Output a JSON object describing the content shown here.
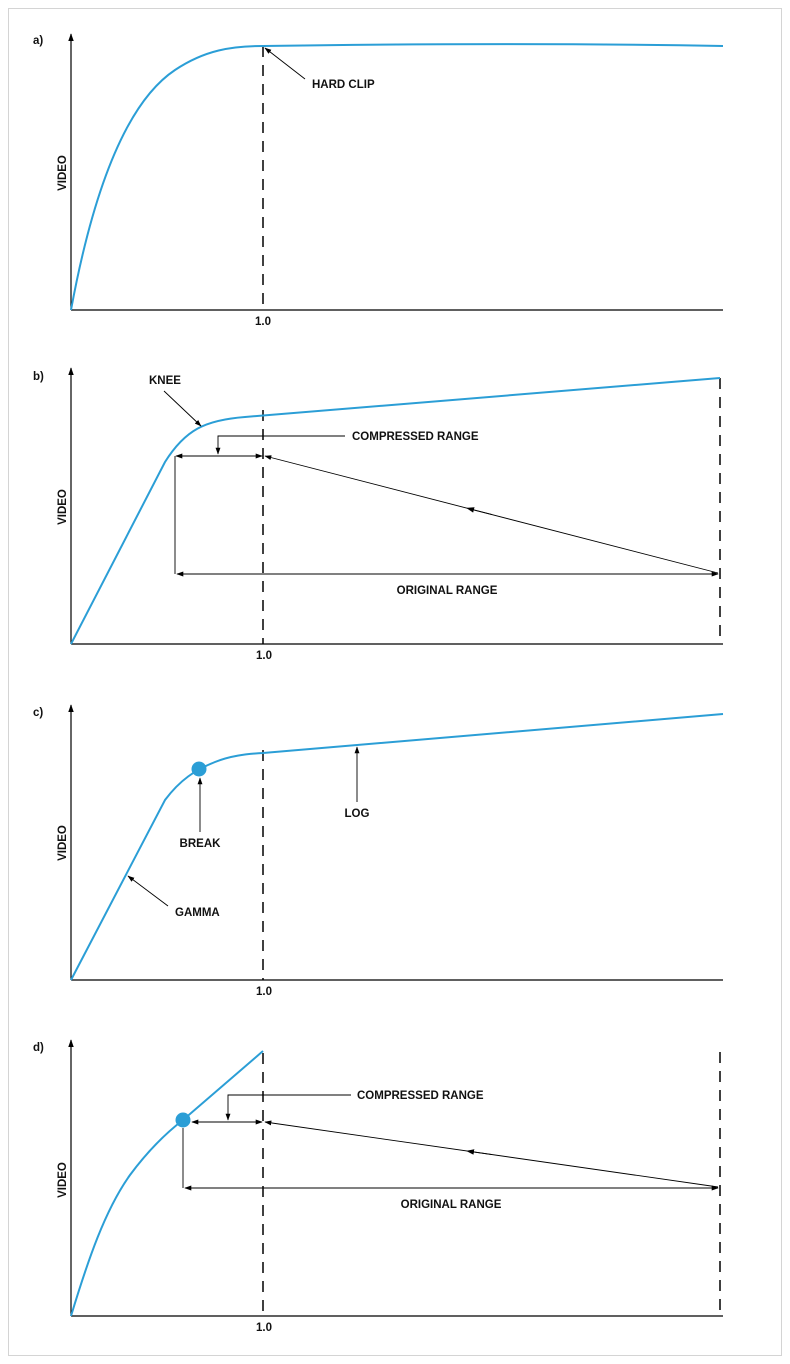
{
  "colors": {
    "curve": "#2b9ed6",
    "ink": "#000000",
    "border": "#d4d4d4"
  },
  "panels": [
    {
      "id": "a",
      "letter": "a)",
      "ylabel": "VIDEO",
      "tick": "1.0",
      "annotations": {
        "hard_clip": "HARD CLIP"
      }
    },
    {
      "id": "b",
      "letter": "b)",
      "ylabel": "VIDEO",
      "tick": "1.0",
      "annotations": {
        "knee": "KNEE",
        "compressed_range": "COMPRESSED RANGE",
        "original_range": "ORIGINAL RANGE"
      }
    },
    {
      "id": "c",
      "letter": "c)",
      "ylabel": "VIDEO",
      "tick": "1.0",
      "annotations": {
        "log": "LOG",
        "break": "BREAK",
        "gamma": "GAMMA"
      }
    },
    {
      "id": "d",
      "letter": "d)",
      "ylabel": "VIDEO",
      "tick": "1.0",
      "annotations": {
        "compressed_range": "COMPRESSED RANGE",
        "original_range": "ORIGINAL RANGE"
      }
    }
  ]
}
